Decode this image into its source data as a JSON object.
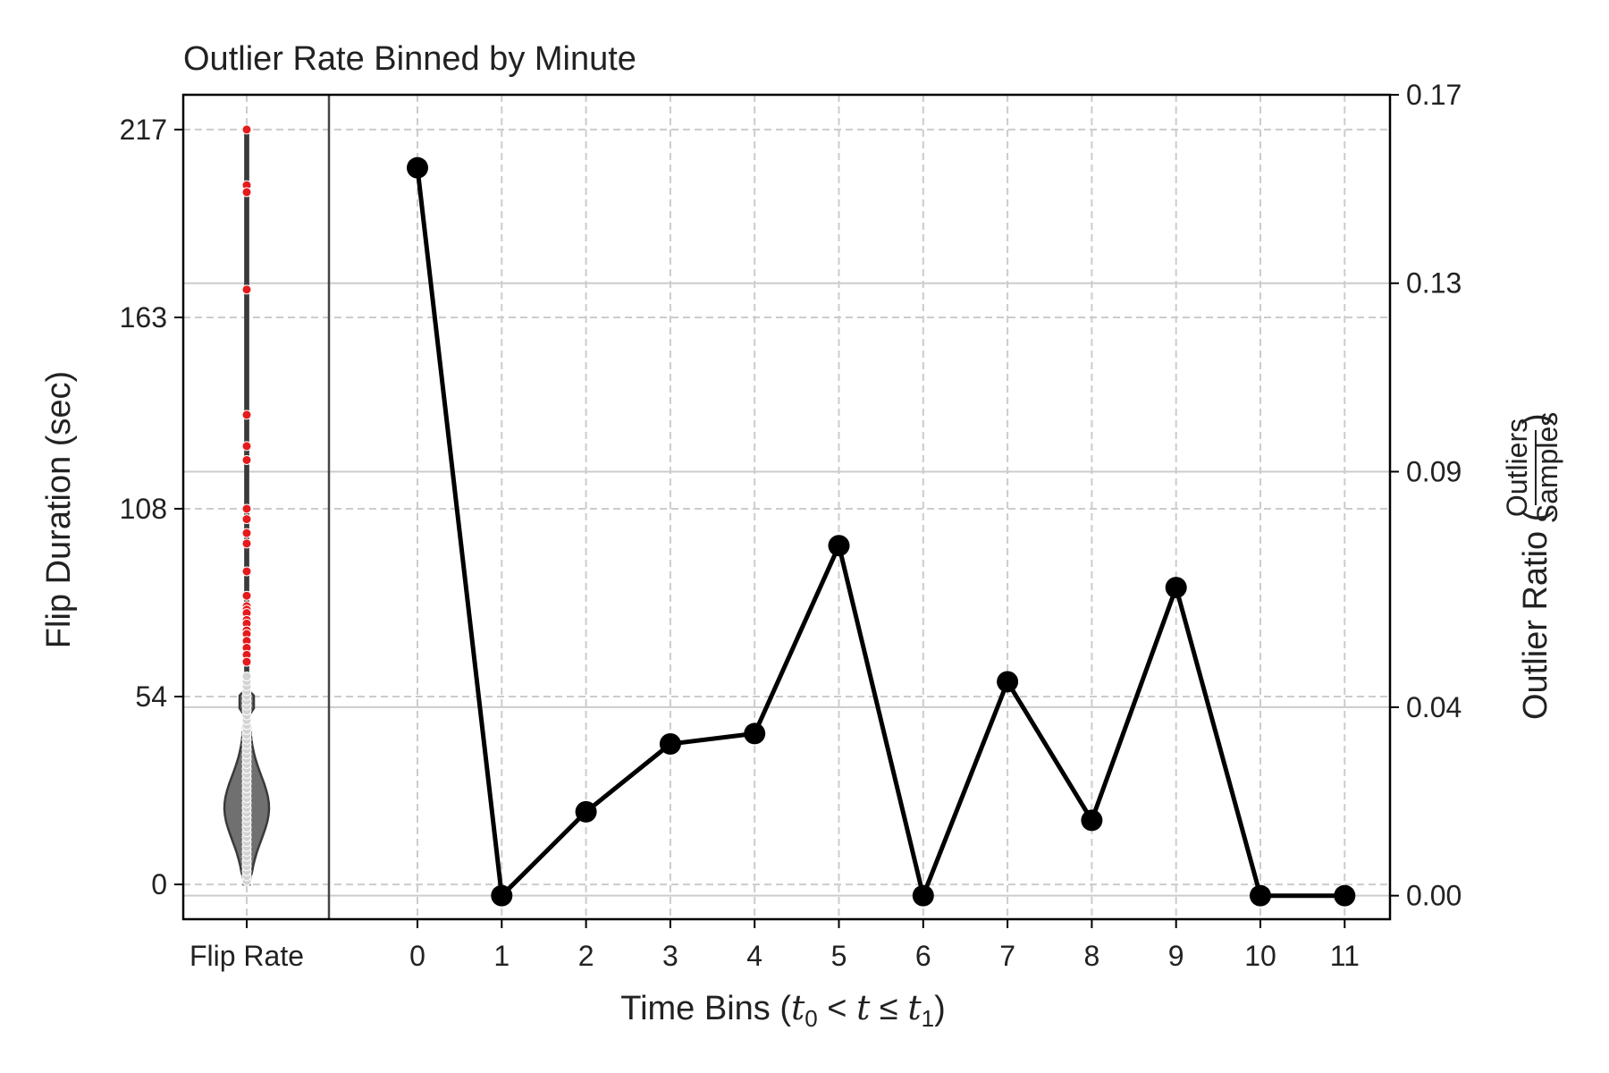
{
  "chart_data": {
    "type": "line",
    "title": "Outlier Rate Binned by Minute",
    "xlabel": {
      "prefix": "Time Bins (",
      "math_t0": "t",
      "sub0": "0",
      "lt": " < ",
      "math_t": "t",
      "le": " ≤ ",
      "math_t1": "t",
      "sub1": "1",
      "suffix": ")"
    },
    "ylabel_left": "Flip Duration (sec)",
    "ylabel_right": {
      "prefix": "Outlier Ratio (",
      "numerator": "Outliers",
      "denominator": "Samples",
      "suffix": ")"
    },
    "left_axis": {
      "ticks": [
        0,
        54,
        108,
        163,
        217
      ],
      "tick_labels": [
        "0",
        "54",
        "108",
        "163",
        "217"
      ],
      "range": [
        -10,
        227
      ]
    },
    "right_axis": {
      "ticks": [
        0.0,
        0.04,
        0.09,
        0.13,
        0.17
      ],
      "tick_labels": [
        "0.00",
        "0.04",
        "0.09",
        "0.13",
        "0.17"
      ],
      "range": [
        -0.005,
        0.17
      ]
    },
    "violin": {
      "category_label": "Flip Rate",
      "range": [
        0,
        217
      ],
      "outlier_threshold": 62,
      "outliers": [
        217,
        201,
        199,
        171,
        135,
        126,
        122,
        108,
        105,
        101,
        98,
        90,
        83,
        80,
        79,
        78,
        76,
        75,
        73,
        72,
        70,
        68,
        66,
        64
      ]
    },
    "categories": [
      "0",
      "1",
      "2",
      "3",
      "4",
      "5",
      "6",
      "7",
      "8",
      "9",
      "10",
      "11"
    ],
    "series": [
      {
        "values": [
          0.1545,
          0.0,
          0.0178,
          0.0322,
          0.0344,
          0.0743,
          0.0,
          0.0454,
          0.016,
          0.0654,
          0.0,
          0.0
        ]
      }
    ],
    "grid": true,
    "colors": {
      "line": "#000000",
      "outlier": "#e41a1c",
      "inlier": "#d3d3d3",
      "violin_fill": "#707070",
      "grid": "#cccccc"
    }
  }
}
